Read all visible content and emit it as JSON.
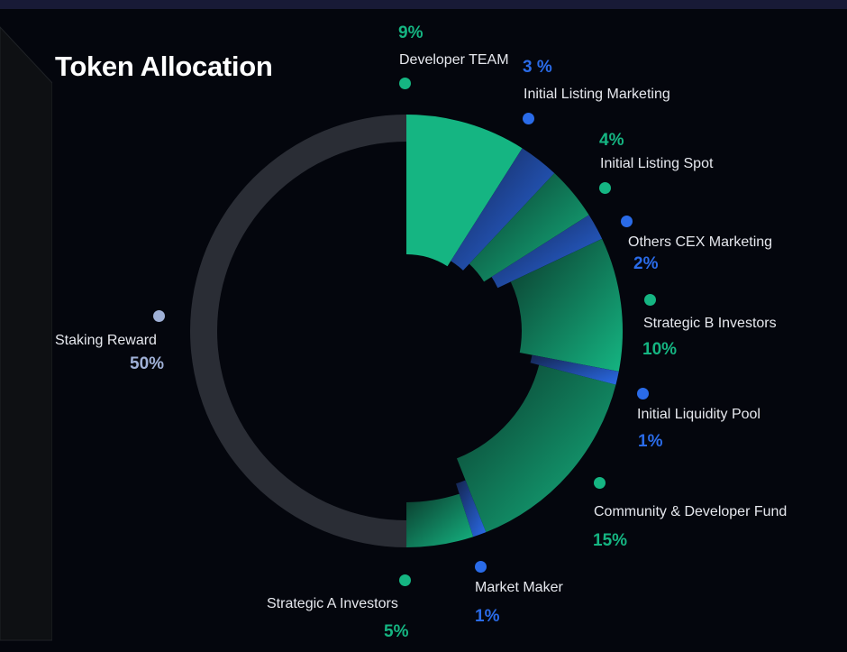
{
  "title": "Token Allocation",
  "chart_data": {
    "type": "pie",
    "title": "Token Allocation",
    "slices": [
      {
        "label": "Developer TEAM",
        "value": 9,
        "pct_text": "9%",
        "color": "#15b582"
      },
      {
        "label": "Initial Listing Marketing",
        "value": 3,
        "pct_text": "3 %",
        "color": "#2a6be8"
      },
      {
        "label": "Initial Listing Spot",
        "value": 4,
        "pct_text": "4%",
        "color": "#15b582"
      },
      {
        "label": "Others CEX Marketing",
        "value": 2,
        "pct_text": "2%",
        "color": "#2a6be8"
      },
      {
        "label": "Strategic B Investors",
        "value": 10,
        "pct_text": "10%",
        "color": "#15b582"
      },
      {
        "label": "Initial Liquidity Pool",
        "value": 1,
        "pct_text": "1%",
        "color": "#2a6be8"
      },
      {
        "label": "Community & Developer Fund",
        "value": 15,
        "pct_text": "15%",
        "color": "#15b582"
      },
      {
        "label": "Market Maker",
        "value": 1,
        "pct_text": "1%",
        "color": "#2a6be8"
      },
      {
        "label": "Strategic A Investors",
        "value": 5,
        "pct_text": "5%",
        "color": "#15b582"
      },
      {
        "label": "Staking Reward",
        "value": 50,
        "pct_text": "50%",
        "color": "#2a2d35"
      }
    ]
  }
}
